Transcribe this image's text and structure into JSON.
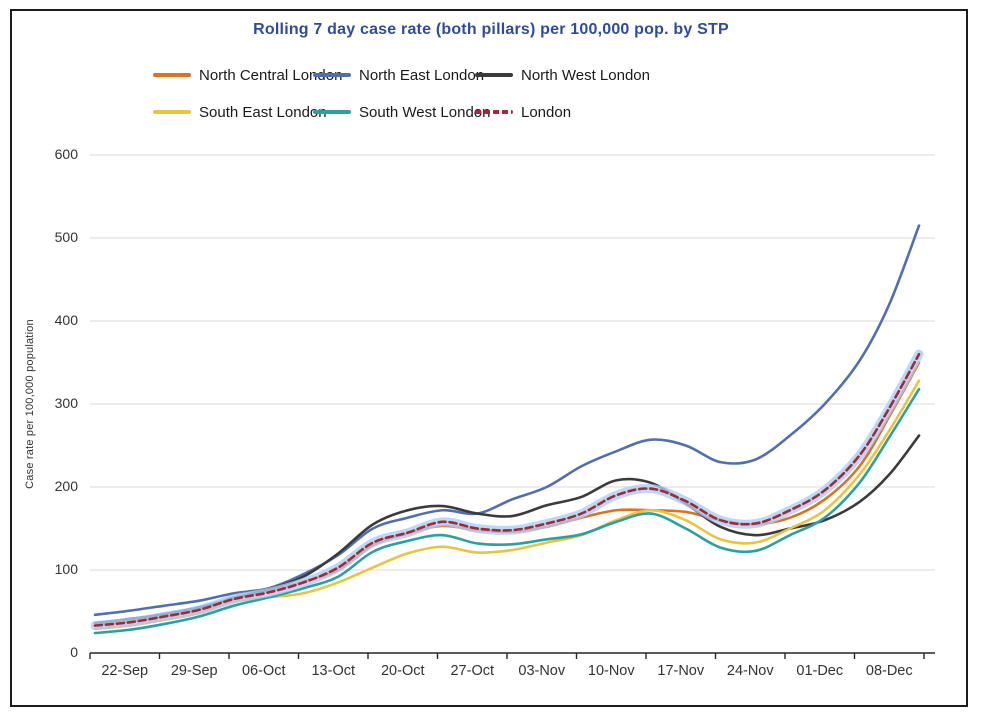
{
  "chart_data": {
    "type": "line",
    "title": "Rolling 7 day case rate (both pillars) per 100,000 pop. by STP",
    "xlabel": "",
    "ylabel": "Case rate per 100,000 population",
    "ylim": [
      0,
      600
    ],
    "yticks": [
      "0",
      "100",
      "200",
      "300",
      "400",
      "500",
      "600"
    ],
    "categories": [
      "22-Sep",
      "29-Sep",
      "06-Oct",
      "13-Oct",
      "20-Oct",
      "27-Oct",
      "03-Nov",
      "10-Nov",
      "17-Nov",
      "24-Nov",
      "01-Dec",
      "08-Dec"
    ],
    "tick_interval_days": 7,
    "grid": "horizontal",
    "legend_position": "top",
    "x_days": [
      0,
      3.5,
      7,
      10.5,
      14,
      17.5,
      21,
      24.5,
      28,
      31.5,
      35,
      38.5,
      42,
      45.5,
      49,
      52.5,
      56,
      59.5,
      63,
      66.5,
      70,
      73.5,
      77,
      80,
      83
    ],
    "series": [
      {
        "name": "North Central London",
        "color": "#e1701a",
        "dash": false,
        "values": [
          34,
          38,
          44,
          52,
          67,
          75,
          86,
          100,
          130,
          144,
          153,
          148,
          146,
          152,
          163,
          172,
          172,
          170,
          160,
          155,
          163,
          185,
          225,
          285,
          350
        ]
      },
      {
        "name": "North East London",
        "color": "#4f6fae",
        "dash": false,
        "values": [
          46,
          51,
          57,
          63,
          72,
          78,
          95,
          118,
          150,
          163,
          172,
          168,
          185,
          200,
          225,
          243,
          257,
          250,
          230,
          233,
          262,
          300,
          352,
          420,
          515
        ]
      },
      {
        "name": "North West London",
        "color": "#3b3b3b",
        "dash": false,
        "values": [
          36,
          41,
          47,
          55,
          66,
          77,
          92,
          120,
          155,
          172,
          177,
          168,
          165,
          178,
          188,
          208,
          205,
          180,
          152,
          142,
          150,
          160,
          182,
          215,
          262
        ]
      },
      {
        "name": "South East London",
        "color": "#eac43d",
        "dash": false,
        "values": [
          29,
          33,
          40,
          48,
          62,
          67,
          72,
          85,
          103,
          120,
          128,
          121,
          124,
          133,
          142,
          160,
          172,
          160,
          137,
          133,
          150,
          172,
          215,
          268,
          328
        ]
      },
      {
        "name": "South West London",
        "color": "#2ba0a4",
        "dash": false,
        "values": [
          24,
          28,
          35,
          44,
          57,
          67,
          78,
          92,
          122,
          135,
          142,
          132,
          131,
          137,
          143,
          158,
          168,
          150,
          127,
          123,
          142,
          163,
          205,
          260,
          318
        ]
      },
      {
        "name": "London",
        "color": "#a02a3c",
        "dash": true,
        "halo": "#aecdf2",
        "values": [
          33,
          37,
          44,
          52,
          65,
          73,
          85,
          103,
          133,
          145,
          158,
          150,
          148,
          156,
          168,
          190,
          198,
          183,
          160,
          156,
          172,
          196,
          238,
          295,
          360
        ]
      }
    ]
  },
  "colors": {
    "title": "#2e4b9e",
    "axis": "#262626",
    "grid": "#d9d9d9",
    "tick_text": "#333333"
  }
}
